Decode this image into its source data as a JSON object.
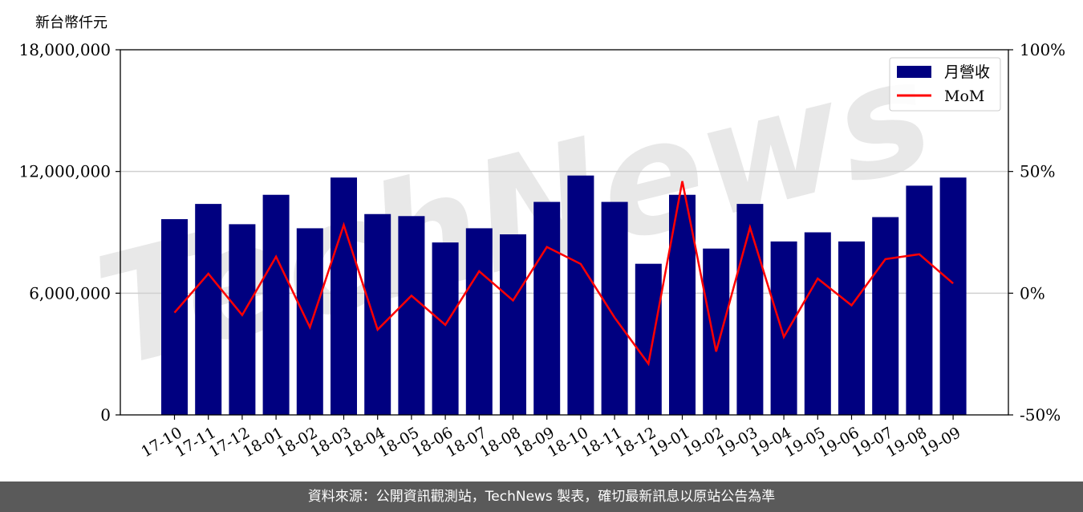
{
  "chart_data": {
    "type": "bar+line",
    "y_left_label": "新台幣仟元",
    "y_left_ticks": [
      "0",
      "6,000,000",
      "12,000,000",
      "18,000,000"
    ],
    "y_left_range": [
      0,
      18000000
    ],
    "y_right_ticks": [
      "-50%",
      "0%",
      "50%",
      "100%"
    ],
    "y_right_range": [
      -50,
      100
    ],
    "categories": [
      "17-10",
      "17-11",
      "17-12",
      "18-01",
      "18-02",
      "18-03",
      "18-04",
      "18-05",
      "18-06",
      "18-07",
      "18-08",
      "18-09",
      "18-10",
      "18-11",
      "18-12",
      "19-01",
      "19-02",
      "19-03",
      "19-04",
      "19-05",
      "19-06",
      "19-07",
      "19-08",
      "19-09"
    ],
    "series": [
      {
        "name": "月營收",
        "kind": "bar",
        "color": "#000080",
        "values": [
          9650000,
          10400000,
          9400000,
          10850000,
          9200000,
          11700000,
          9900000,
          9800000,
          8500000,
          9200000,
          8900000,
          10500000,
          11800000,
          10500000,
          7450000,
          10850000,
          8200000,
          10400000,
          8550000,
          9000000,
          8550000,
          9750000,
          11300000,
          11700000
        ]
      },
      {
        "name": "MoM",
        "kind": "line",
        "color": "#ff0000",
        "axis": "right",
        "values": [
          -8,
          8,
          -9,
          15,
          -14,
          28,
          -15,
          -1,
          -13,
          9,
          -3,
          19,
          12,
          -10,
          -29,
          46,
          -24,
          27,
          -18,
          6,
          -5,
          14,
          16,
          4
        ]
      }
    ],
    "legend_position": "top-right",
    "grid": "horizontal"
  },
  "watermark": "TechNews",
  "footer_text": "資料來源：公開資訊觀測站，TechNews 製表，確切最新訊息以原站公告為準"
}
